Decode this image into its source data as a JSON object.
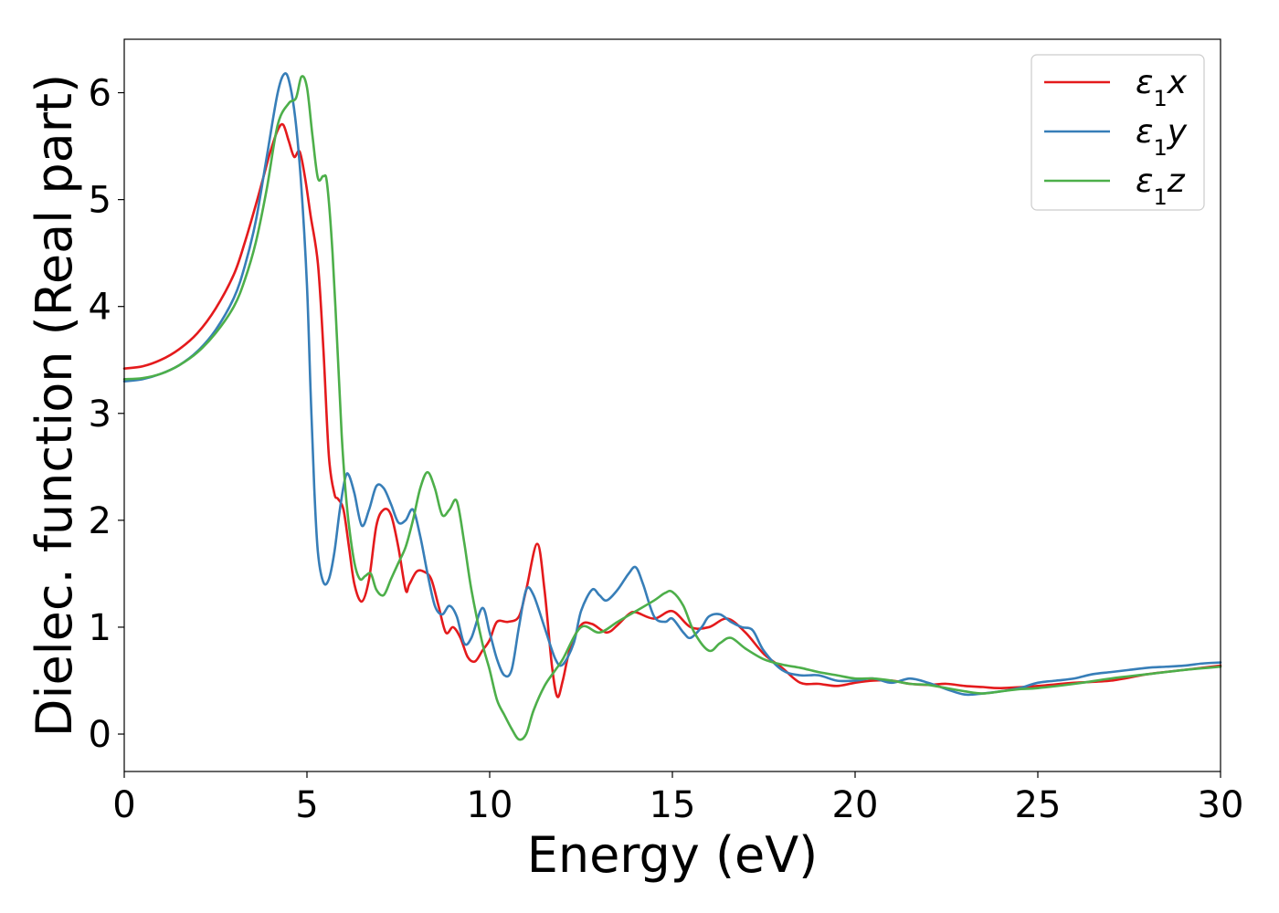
{
  "chart_data": {
    "type": "line",
    "xlabel": "Energy (eV)",
    "ylabel": "Dielec. function (Real part)",
    "xlim": [
      0,
      30
    ],
    "ylim": [
      -0.35,
      6.5
    ],
    "xticks": [
      0,
      5,
      10,
      15,
      20,
      25,
      30
    ],
    "yticks": [
      0,
      1,
      2,
      3,
      4,
      5,
      6
    ],
    "grid": false,
    "legend_position": "top-right",
    "series": [
      {
        "name": "ε1x",
        "name_base": "ε",
        "name_sub": "1",
        "name_tail": "x",
        "color": "#e41a1c",
        "x": [
          0,
          0.5,
          1.0,
          1.5,
          2.0,
          2.5,
          3.0,
          3.3,
          3.6,
          3.8,
          4.0,
          4.2,
          4.35,
          4.5,
          4.65,
          4.8,
          4.95,
          5.1,
          5.3,
          5.45,
          5.6,
          5.75,
          5.85,
          6.0,
          6.15,
          6.3,
          6.5,
          6.7,
          6.9,
          7.1,
          7.3,
          7.5,
          7.7,
          7.8,
          8.0,
          8.2,
          8.4,
          8.6,
          8.8,
          9.0,
          9.2,
          9.4,
          9.6,
          9.8,
          10.0,
          10.2,
          10.5,
          10.8,
          11.0,
          11.3,
          11.5,
          11.7,
          11.85,
          12.0,
          12.2,
          12.5,
          12.8,
          13.2,
          13.5,
          13.8,
          14.0,
          14.5,
          15.0,
          15.5,
          16.0,
          16.5,
          17.0,
          17.5,
          18.0,
          18.5,
          19.0,
          19.5,
          20.0,
          20.5,
          21.0,
          21.5,
          22.0,
          22.5,
          23.0,
          23.5,
          24.0,
          25.0,
          26.0,
          27.0,
          28.0,
          29.0,
          30.0
        ],
        "y": [
          3.42,
          3.44,
          3.5,
          3.6,
          3.75,
          3.98,
          4.3,
          4.6,
          4.95,
          5.2,
          5.45,
          5.65,
          5.7,
          5.55,
          5.4,
          5.45,
          5.2,
          4.85,
          4.4,
          3.6,
          2.6,
          2.25,
          2.2,
          2.1,
          1.75,
          1.4,
          1.24,
          1.45,
          1.95,
          2.1,
          2.05,
          1.75,
          1.35,
          1.4,
          1.52,
          1.52,
          1.45,
          1.2,
          0.95,
          1.0,
          0.9,
          0.72,
          0.68,
          0.78,
          0.88,
          1.05,
          1.05,
          1.1,
          1.35,
          1.78,
          1.35,
          0.65,
          0.35,
          0.5,
          0.8,
          1.02,
          1.03,
          0.95,
          1.02,
          1.12,
          1.14,
          1.08,
          1.15,
          1.0,
          1.0,
          1.08,
          0.95,
          0.75,
          0.62,
          0.48,
          0.47,
          0.45,
          0.48,
          0.5,
          0.5,
          0.47,
          0.46,
          0.47,
          0.45,
          0.44,
          0.43,
          0.45,
          0.48,
          0.5,
          0.56,
          0.6,
          0.64
        ]
      },
      {
        "name": "ε1y",
        "name_base": "ε",
        "name_sub": "1",
        "name_tail": "y",
        "color": "#377eb8",
        "x": [
          0,
          0.5,
          1.0,
          1.5,
          2.0,
          2.5,
          3.0,
          3.3,
          3.6,
          3.9,
          4.2,
          4.4,
          4.55,
          4.7,
          4.85,
          5.0,
          5.1,
          5.2,
          5.3,
          5.45,
          5.6,
          5.75,
          5.9,
          6.05,
          6.15,
          6.3,
          6.5,
          6.7,
          6.9,
          7.1,
          7.3,
          7.5,
          7.7,
          7.9,
          8.1,
          8.3,
          8.5,
          8.7,
          8.9,
          9.1,
          9.3,
          9.5,
          9.8,
          10.0,
          10.2,
          10.4,
          10.6,
          10.8,
          11.0,
          11.2,
          11.5,
          11.8,
          12.0,
          12.3,
          12.5,
          12.8,
          13.0,
          13.2,
          13.5,
          13.8,
          14.0,
          14.2,
          14.5,
          14.8,
          15.0,
          15.3,
          15.5,
          15.8,
          16.0,
          16.3,
          16.6,
          16.9,
          17.2,
          17.5,
          18.0,
          18.5,
          19.0,
          19.5,
          20.0,
          20.5,
          21.0,
          21.5,
          22.0,
          22.5,
          23.0,
          23.5,
          24.0,
          24.5,
          25.0,
          25.5,
          26.0,
          26.5,
          27.0,
          27.5,
          28.0,
          28.5,
          29.0,
          29.5,
          30.0
        ],
        "y": [
          3.3,
          3.32,
          3.37,
          3.45,
          3.58,
          3.78,
          4.08,
          4.38,
          4.8,
          5.4,
          6.0,
          6.18,
          6.05,
          5.7,
          5.1,
          4.2,
          3.2,
          2.3,
          1.7,
          1.42,
          1.45,
          1.7,
          2.1,
          2.4,
          2.42,
          2.25,
          1.95,
          2.1,
          2.32,
          2.3,
          2.15,
          1.98,
          2.0,
          2.1,
          1.85,
          1.5,
          1.2,
          1.12,
          1.2,
          1.1,
          0.85,
          0.9,
          1.18,
          0.95,
          0.7,
          0.55,
          0.6,
          1.0,
          1.35,
          1.3,
          1.0,
          0.7,
          0.65,
          0.85,
          1.15,
          1.35,
          1.3,
          1.25,
          1.35,
          1.5,
          1.56,
          1.4,
          1.1,
          1.05,
          1.08,
          0.95,
          0.9,
          1.0,
          1.1,
          1.12,
          1.05,
          1.0,
          0.97,
          0.78,
          0.6,
          0.55,
          0.55,
          0.5,
          0.5,
          0.52,
          0.48,
          0.52,
          0.48,
          0.42,
          0.37,
          0.38,
          0.4,
          0.43,
          0.48,
          0.5,
          0.52,
          0.56,
          0.58,
          0.6,
          0.62,
          0.63,
          0.64,
          0.66,
          0.67
        ]
      },
      {
        "name": "ε1z",
        "name_base": "ε",
        "name_sub": "1",
        "name_tail": "z",
        "color": "#4daf4a",
        "x": [
          0,
          0.5,
          1.0,
          1.5,
          2.0,
          2.5,
          3.0,
          3.3,
          3.6,
          3.9,
          4.2,
          4.5,
          4.7,
          4.85,
          5.0,
          5.15,
          5.3,
          5.45,
          5.55,
          5.7,
          5.85,
          5.95,
          6.05,
          6.15,
          6.3,
          6.45,
          6.6,
          6.75,
          6.9,
          7.1,
          7.3,
          7.5,
          7.7,
          7.9,
          8.1,
          8.3,
          8.5,
          8.7,
          8.9,
          9.1,
          9.3,
          9.5,
          9.8,
          10.0,
          10.2,
          10.4,
          10.6,
          10.8,
          11.0,
          11.2,
          11.5,
          11.8,
          12.0,
          12.5,
          13.0,
          13.5,
          14.0,
          14.5,
          14.8,
          15.0,
          15.3,
          15.6,
          16.0,
          16.3,
          16.6,
          17.0,
          17.5,
          18.0,
          18.5,
          19.0,
          19.5,
          20.0,
          20.5,
          21.0,
          21.5,
          22.0,
          22.5,
          23.0,
          23.5,
          24.0,
          24.5,
          25.0,
          26.0,
          27.0,
          28.0,
          29.0,
          30.0
        ],
        "y": [
          3.32,
          3.33,
          3.37,
          3.45,
          3.57,
          3.75,
          4.0,
          4.25,
          4.6,
          5.1,
          5.7,
          5.9,
          5.95,
          6.15,
          6.05,
          5.6,
          5.2,
          5.22,
          5.15,
          4.5,
          3.5,
          2.8,
          2.3,
          1.95,
          1.6,
          1.45,
          1.48,
          1.5,
          1.35,
          1.3,
          1.45,
          1.6,
          1.75,
          2.0,
          2.3,
          2.45,
          2.3,
          2.05,
          2.1,
          2.18,
          1.8,
          1.35,
          0.85,
          0.6,
          0.32,
          0.18,
          0.05,
          -0.05,
          0.0,
          0.22,
          0.45,
          0.6,
          0.7,
          1.0,
          0.95,
          1.05,
          1.15,
          1.25,
          1.32,
          1.33,
          1.2,
          0.95,
          0.78,
          0.85,
          0.9,
          0.8,
          0.7,
          0.65,
          0.62,
          0.58,
          0.55,
          0.52,
          0.52,
          0.5,
          0.47,
          0.46,
          0.43,
          0.4,
          0.38,
          0.4,
          0.42,
          0.43,
          0.47,
          0.52,
          0.56,
          0.6,
          0.63
        ]
      }
    ]
  }
}
